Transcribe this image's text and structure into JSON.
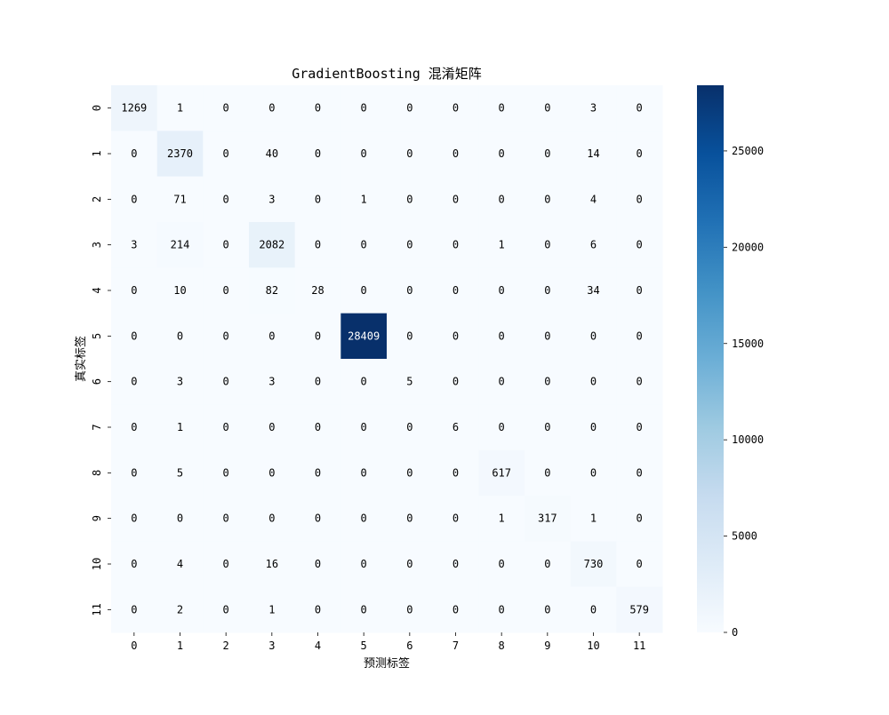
{
  "chart_data": {
    "type": "heatmap",
    "title": "GradientBoosting 混淆矩阵",
    "xlabel": "预测标签",
    "ylabel": "真实标签",
    "x_tick_labels": [
      "0",
      "1",
      "2",
      "3",
      "4",
      "5",
      "6",
      "7",
      "8",
      "9",
      "10",
      "11"
    ],
    "y_tick_labels": [
      "0",
      "1",
      "2",
      "3",
      "4",
      "5",
      "6",
      "7",
      "8",
      "9",
      "10",
      "11"
    ],
    "matrix": [
      [
        1269,
        1,
        0,
        0,
        0,
        0,
        0,
        0,
        0,
        0,
        3,
        0
      ],
      [
        0,
        2370,
        0,
        40,
        0,
        0,
        0,
        0,
        0,
        0,
        14,
        0
      ],
      [
        0,
        71,
        0,
        3,
        0,
        1,
        0,
        0,
        0,
        0,
        4,
        0
      ],
      [
        3,
        214,
        0,
        2082,
        0,
        0,
        0,
        0,
        1,
        0,
        6,
        0
      ],
      [
        0,
        10,
        0,
        82,
        28,
        0,
        0,
        0,
        0,
        0,
        34,
        0
      ],
      [
        0,
        0,
        0,
        0,
        0,
        28409,
        0,
        0,
        0,
        0,
        0,
        0
      ],
      [
        0,
        3,
        0,
        3,
        0,
        0,
        5,
        0,
        0,
        0,
        0,
        0
      ],
      [
        0,
        1,
        0,
        0,
        0,
        0,
        0,
        6,
        0,
        0,
        0,
        0
      ],
      [
        0,
        5,
        0,
        0,
        0,
        0,
        0,
        0,
        617,
        0,
        0,
        0
      ],
      [
        0,
        0,
        0,
        0,
        0,
        0,
        0,
        0,
        1,
        317,
        1,
        0
      ],
      [
        0,
        4,
        0,
        16,
        0,
        0,
        0,
        0,
        0,
        0,
        730,
        0
      ],
      [
        0,
        2,
        0,
        1,
        0,
        0,
        0,
        0,
        0,
        0,
        0,
        579
      ]
    ],
    "colormap": "Blues",
    "colorbar": {
      "min": 0,
      "max": 28409,
      "ticks": [
        0,
        5000,
        10000,
        15000,
        20000,
        25000
      ]
    },
    "colors": {
      "low": "#f7fbff",
      "high": "#08306b"
    }
  }
}
